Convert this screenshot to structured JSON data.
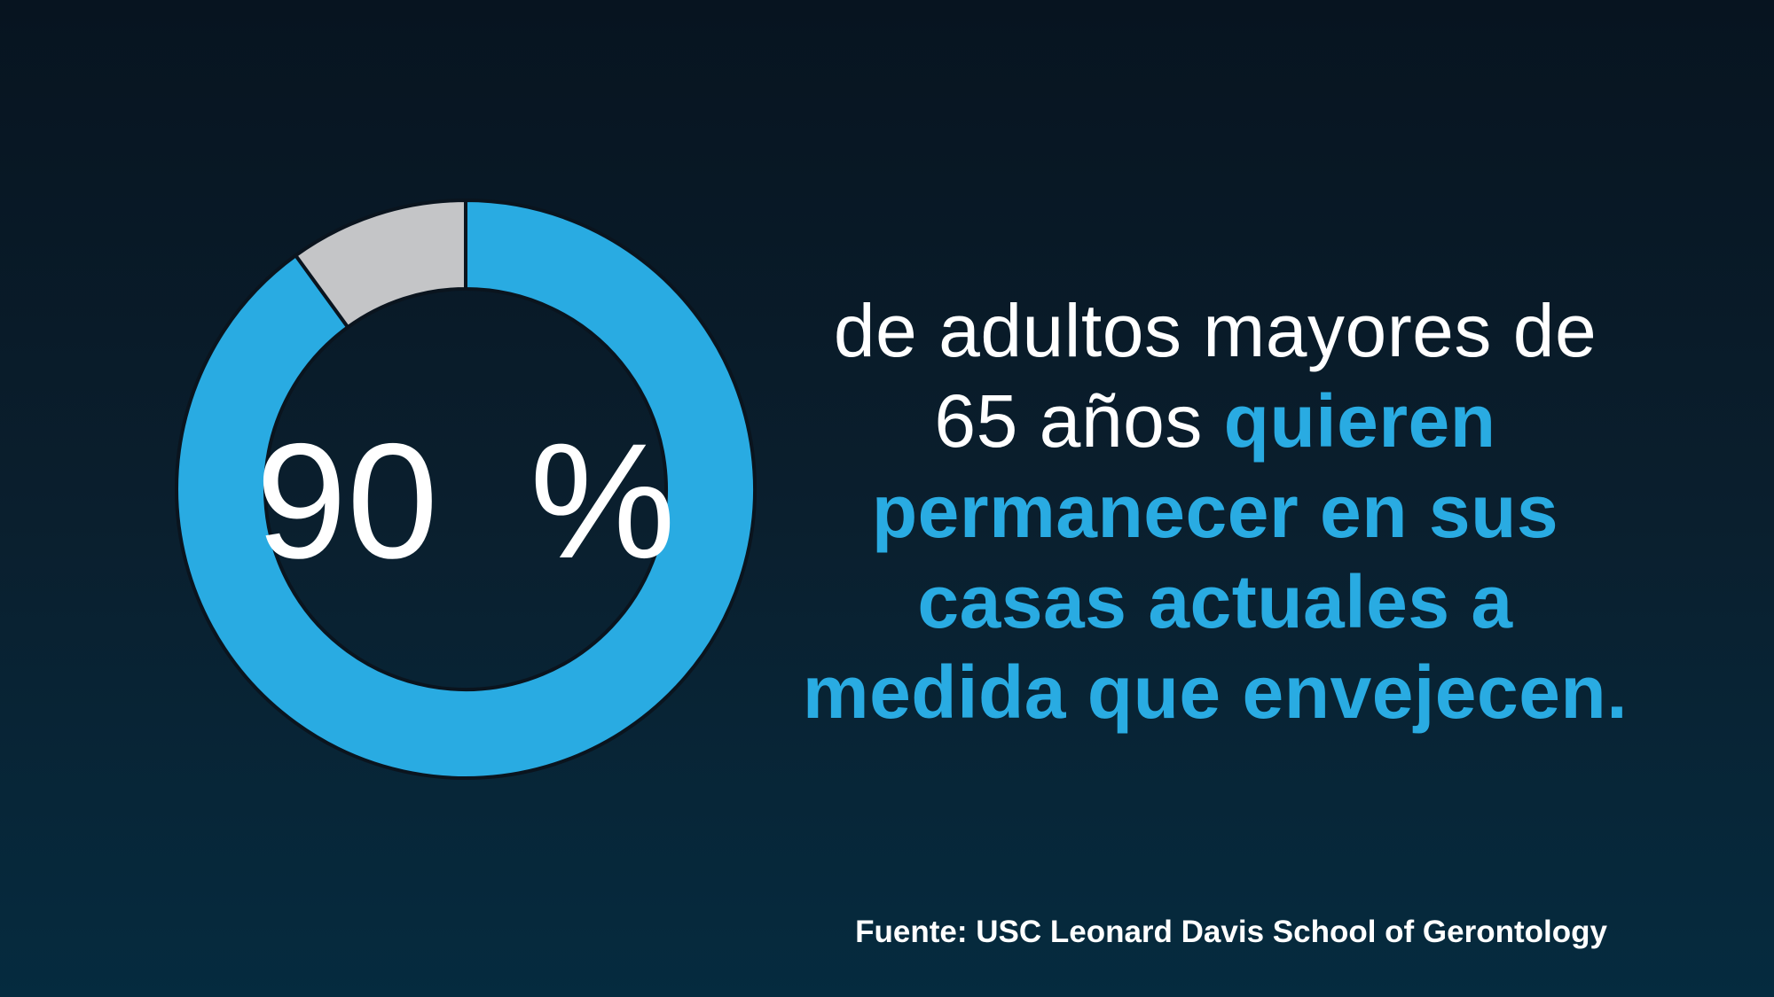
{
  "colors": {
    "accent_blue": "#29abe2",
    "slice_gray": "#c4c5c7",
    "outline": "#0a141e",
    "text_white": "#ffffff",
    "bg_top": "#071420",
    "bg_mid": "#0a1f2e",
    "bg_bottom": "#052b3f"
  },
  "chart_data": {
    "type": "pie",
    "donut": true,
    "start_angle_deg": 0,
    "direction": "clockwise",
    "outer_radius": 326,
    "inner_radius": 226,
    "segments": [
      {
        "name": "want-to-stay",
        "value": 90,
        "color": "#29abe2"
      },
      {
        "name": "remainder",
        "value": 10,
        "color": "#c4c5c7"
      }
    ],
    "center_label": "90 %",
    "title": "",
    "legend": "none",
    "annotations": [
      "90 %"
    ]
  },
  "statement": {
    "line1_white": "de adultos mayores de",
    "line2_white": "65 años",
    "line2_blue": "quieren",
    "line3_blue": "permanecer en sus",
    "line4_blue": "casas actuales a",
    "line5_blue": "medida que envejecen."
  },
  "source": {
    "label": "Fuente: USC Leonard Davis School of Gerontology"
  }
}
